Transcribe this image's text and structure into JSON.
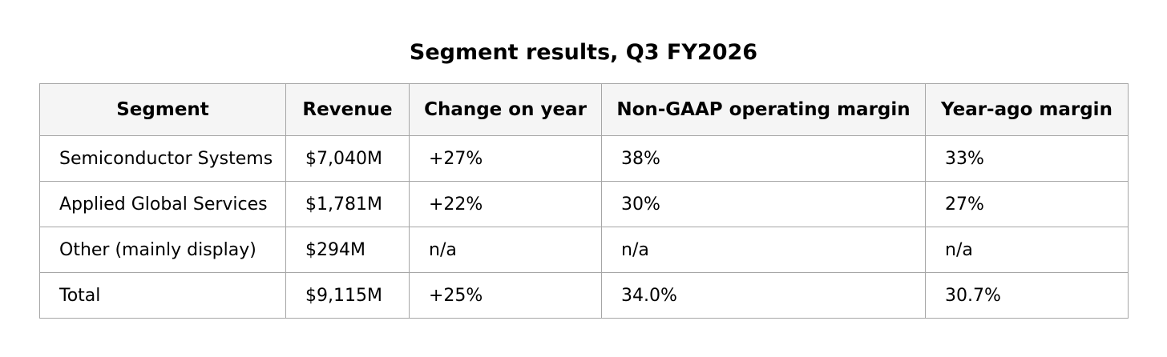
{
  "title": "Segment results, Q3 FY2026",
  "table": {
    "headers": [
      "Segment",
      "Revenue",
      "Change on year",
      "Non-GAAP operating margin",
      "Year-ago margin"
    ],
    "rows": [
      [
        "Semiconductor Systems",
        "$7,040M",
        "+27%",
        "38%",
        "33%"
      ],
      [
        "Applied Global Services",
        "$1,781M",
        "+22%",
        "30%",
        "27%"
      ],
      [
        "Other (mainly display)",
        "$294M",
        "n/a",
        "n/a",
        "n/a"
      ],
      [
        "Total",
        "$9,115M",
        "+25%",
        "34.0%",
        "30.7%"
      ]
    ]
  }
}
